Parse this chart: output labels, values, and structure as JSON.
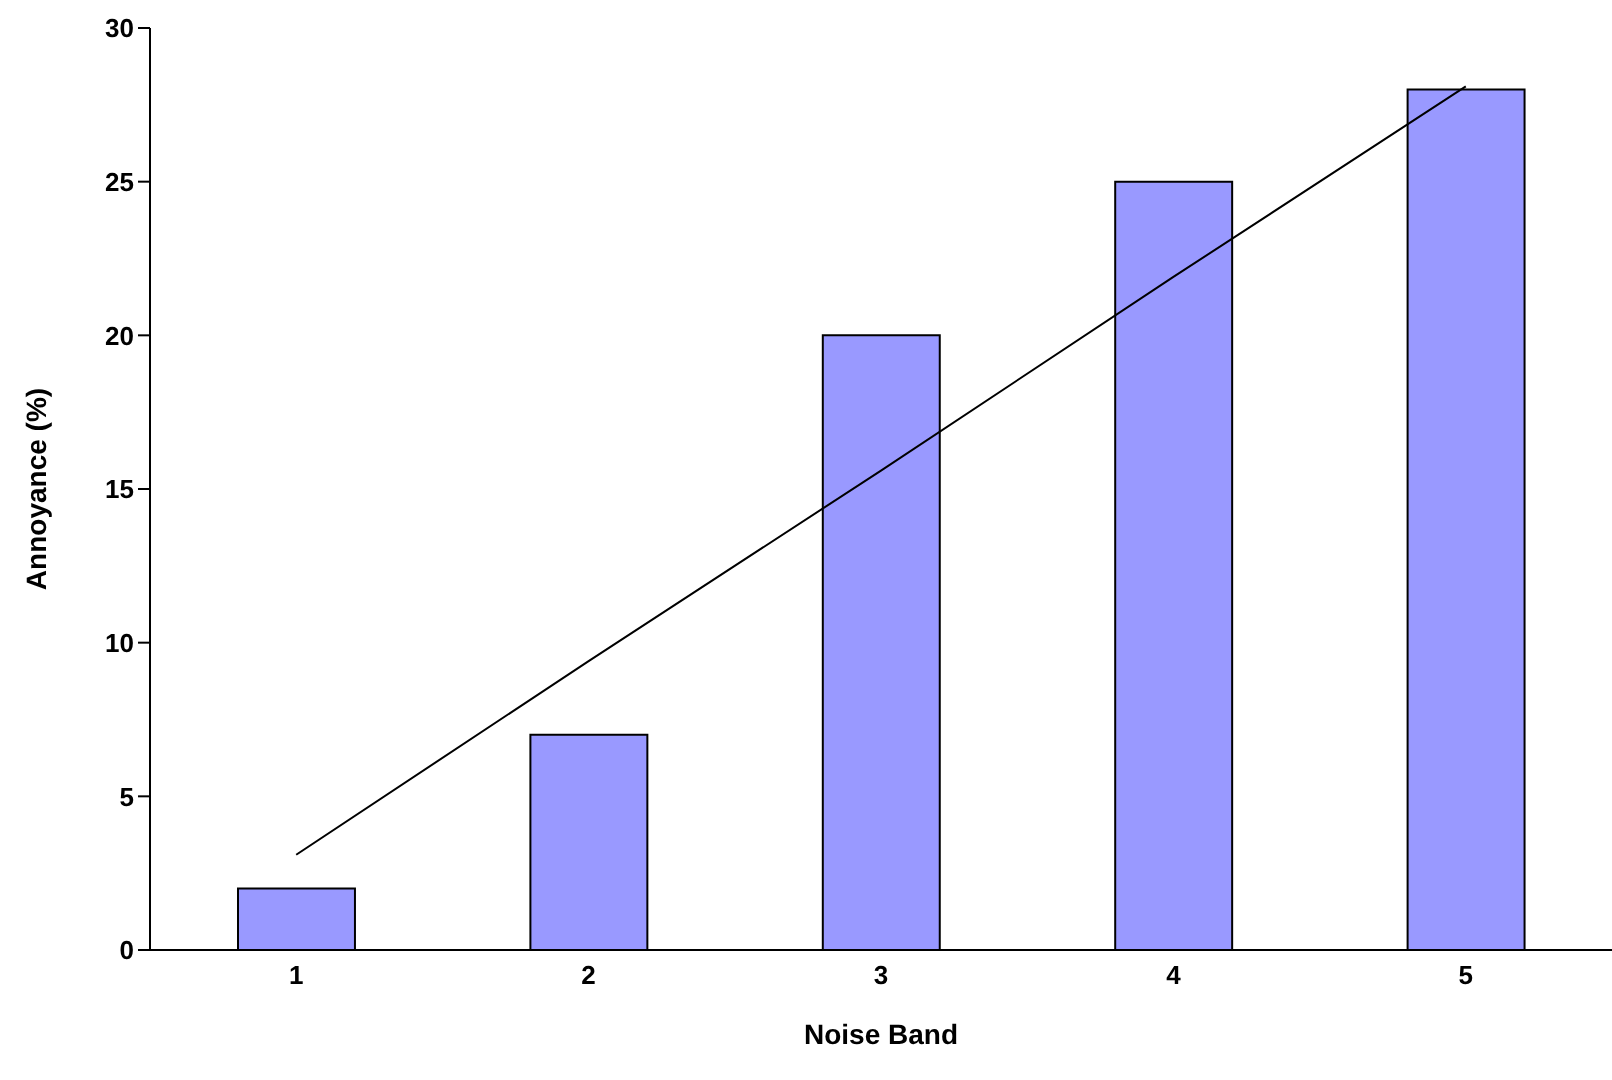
{
  "chart_data": {
    "type": "bar",
    "xlabel": "Noise Band",
    "ylabel": "Annoyance (%)",
    "categories": [
      "1",
      "2",
      "3",
      "4",
      "5"
    ],
    "series": [
      {
        "color": "#9999ff",
        "values": [
          2,
          7,
          20,
          25,
          28
        ]
      },
      {
        "type": "line",
        "color": "#000000",
        "values": [
          3.1,
          9.4,
          15.6,
          21.9,
          28.1
        ]
      }
    ],
    "ylim": [
      0,
      30
    ],
    "yticks": [
      0,
      5,
      10,
      15,
      20,
      25,
      30
    ],
    "grid": false,
    "legend": false
  }
}
